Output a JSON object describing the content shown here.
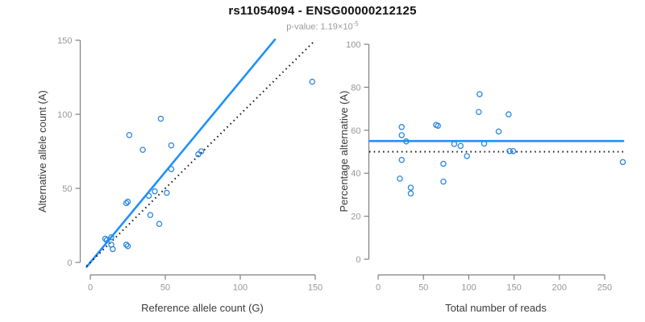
{
  "header": {
    "title": "rs11054094 - ENSG00000212125",
    "pvalue_prefix": "p-value: ",
    "pvalue_mantissa": "1.19×10",
    "pvalue_exponent": "-5"
  },
  "colors": {
    "accent_blue": "#1E90FF",
    "point_blue": "#2B87E0",
    "dashed_black": "#111111",
    "axis_gray": "#808080",
    "tick_label_gray": "#979797",
    "axis_title_dark": "#3a3a3a"
  },
  "chart_data": [
    {
      "type": "scatter",
      "name": "allele-counts-scatter",
      "xlabel": "Reference allele count (G)",
      "ylabel": "Alternative allele count (A)",
      "xlim": [
        0,
        150
      ],
      "ylim": [
        0,
        150
      ],
      "xticks": [
        0,
        50,
        100,
        150
      ],
      "yticks": [
        0,
        50,
        100,
        150
      ],
      "grid": false,
      "points": [
        [
          148,
          122
        ],
        [
          47,
          97
        ],
        [
          26,
          86
        ],
        [
          35,
          76
        ],
        [
          54,
          79
        ],
        [
          72,
          73
        ],
        [
          74,
          75
        ],
        [
          54,
          63
        ],
        [
          43,
          48
        ],
        [
          51,
          47
        ],
        [
          39,
          45
        ],
        [
          40,
          32
        ],
        [
          46,
          26
        ],
        [
          24,
          40
        ],
        [
          25,
          41
        ],
        [
          10,
          16
        ],
        [
          11,
          15
        ],
        [
          14,
          17
        ],
        [
          14,
          12
        ],
        [
          15,
          9
        ],
        [
          24,
          12
        ],
        [
          25,
          11
        ]
      ],
      "ablines": [
        {
          "name": "fit-line",
          "slope": 1.222,
          "intercept": 0,
          "style": "solid",
          "color_key": "accent_blue"
        },
        {
          "name": "identity-line",
          "slope": 1.0,
          "intercept": 0,
          "style": "dotted",
          "color_key": "dashed_black"
        }
      ]
    },
    {
      "type": "scatter",
      "name": "percentage-vs-reads-scatter",
      "xlabel": "Total number of reads",
      "ylabel": "Percentage alternative (A)",
      "xlim": [
        0,
        250
      ],
      "ylim": [
        0,
        100
      ],
      "xticks": [
        0,
        50,
        100,
        150,
        200,
        250
      ],
      "yticks": [
        0,
        20,
        40,
        60,
        80,
        100
      ],
      "grid": false,
      "points": [
        [
          270,
          45.2
        ],
        [
          144,
          67.4
        ],
        [
          112,
          76.8
        ],
        [
          111,
          68.5
        ],
        [
          133,
          59.4
        ],
        [
          145,
          50.3
        ],
        [
          149,
          50.3
        ],
        [
          117,
          53.8
        ],
        [
          91,
          52.7
        ],
        [
          98,
          48.0
        ],
        [
          84,
          53.6
        ],
        [
          72,
          44.4
        ],
        [
          72,
          36.1
        ],
        [
          64,
          62.5
        ],
        [
          66,
          62.1
        ],
        [
          26,
          61.5
        ],
        [
          26,
          57.7
        ],
        [
          31,
          54.8
        ],
        [
          26,
          46.2
        ],
        [
          24,
          37.5
        ],
        [
          36,
          33.3
        ],
        [
          36,
          30.6
        ]
      ],
      "hlines": [
        {
          "name": "mean-percentage-line",
          "y": 55,
          "style": "solid",
          "color_key": "accent_blue"
        },
        {
          "name": "expected-50-line",
          "y": 50,
          "style": "dotted",
          "color_key": "dashed_black"
        }
      ]
    }
  ]
}
